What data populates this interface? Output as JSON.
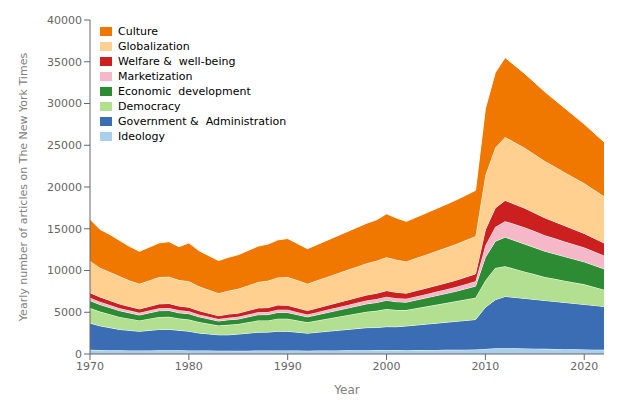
{
  "chart_data": {
    "type": "area",
    "stacked": true,
    "xlabel": "Year",
    "ylabel": "Yearly number of articles on The New York Times",
    "x": [
      1970,
      1971,
      1972,
      1973,
      1974,
      1975,
      1976,
      1977,
      1978,
      1979,
      1980,
      1981,
      1982,
      1983,
      1984,
      1985,
      1986,
      1987,
      1988,
      1989,
      1990,
      1991,
      1992,
      1993,
      1994,
      1995,
      1996,
      1997,
      1998,
      1999,
      2000,
      2001,
      2002,
      2003,
      2004,
      2005,
      2006,
      2007,
      2008,
      2009,
      2010,
      2011,
      2012,
      2013,
      2014,
      2015,
      2016,
      2017,
      2018,
      2019,
      2020,
      2021,
      2022
    ],
    "xlim": [
      1970,
      2022
    ],
    "xticks": [
      1970,
      1980,
      1990,
      2000,
      2010,
      2020
    ],
    "ylim": [
      0,
      40000
    ],
    "yticks": [
      0,
      5000,
      10000,
      15000,
      20000,
      25000,
      30000,
      35000,
      40000
    ],
    "grid": false,
    "legend": "upper left",
    "series": [
      {
        "name": "Ideology",
        "color": "#aacfea",
        "values": [
          500,
          480,
          460,
          440,
          430,
          420,
          430,
          440,
          460,
          440,
          430,
          420,
          410,
          400,
          400,
          390,
          400,
          410,
          420,
          430,
          420,
          410,
          400,
          410,
          420,
          430,
          440,
          450,
          460,
          470,
          480,
          470,
          460,
          470,
          480,
          490,
          500,
          510,
          520,
          530,
          600,
          700,
          700,
          680,
          660,
          640,
          620,
          600,
          580,
          560,
          540,
          520,
          500
        ]
      },
      {
        "name": "Government &  Administration",
        "color": "#3b6db5",
        "values": [
          3200,
          2900,
          2700,
          2500,
          2400,
          2300,
          2400,
          2500,
          2500,
          2400,
          2300,
          2100,
          2000,
          1900,
          1900,
          2000,
          2100,
          2200,
          2200,
          2300,
          2300,
          2200,
          2100,
          2200,
          2300,
          2400,
          2500,
          2600,
          2700,
          2700,
          2800,
          2800,
          2900,
          3000,
          3100,
          3200,
          3300,
          3400,
          3500,
          3600,
          5000,
          5800,
          6200,
          6100,
          6000,
          5900,
          5800,
          5700,
          5600,
          5500,
          5400,
          5300,
          5200
        ]
      },
      {
        "name": "Democracy",
        "color": "#b2e090",
        "values": [
          1800,
          1700,
          1600,
          1500,
          1400,
          1300,
          1400,
          1500,
          1500,
          1400,
          1400,
          1300,
          1200,
          1100,
          1200,
          1200,
          1300,
          1400,
          1400,
          1500,
          1500,
          1400,
          1300,
          1400,
          1500,
          1600,
          1700,
          1800,
          1900,
          2000,
          2100,
          2000,
          1900,
          2000,
          2100,
          2200,
          2300,
          2400,
          2500,
          2600,
          3200,
          3800,
          3600,
          3400,
          3200,
          3000,
          2800,
          2700,
          2600,
          2500,
          2400,
          2200,
          2000
        ]
      },
      {
        "name": "Economic  development",
        "color": "#2d8b34",
        "values": [
          900,
          850,
          800,
          750,
          700,
          650,
          700,
          750,
          750,
          700,
          700,
          650,
          600,
          550,
          600,
          600,
          650,
          700,
          700,
          750,
          750,
          700,
          650,
          700,
          750,
          800,
          850,
          900,
          950,
          1000,
          1050,
          1000,
          950,
          1000,
          1050,
          1100,
          1150,
          1200,
          1300,
          1400,
          2800,
          3200,
          3500,
          3400,
          3300,
          3200,
          3100,
          3000,
          2900,
          2800,
          2700,
          2600,
          2500
        ]
      },
      {
        "name": "Marketization",
        "color": "#f5b8c8",
        "values": [
          350,
          330,
          310,
          290,
          270,
          260,
          280,
          300,
          310,
          300,
          290,
          270,
          250,
          230,
          250,
          260,
          280,
          300,
          310,
          330,
          320,
          300,
          280,
          300,
          320,
          340,
          360,
          380,
          400,
          420,
          440,
          420,
          400,
          420,
          440,
          460,
          480,
          510,
          540,
          570,
          1400,
          1700,
          1900,
          1950,
          2000,
          1950,
          1900,
          1850,
          1800,
          1750,
          1700,
          1650,
          1600
        ]
      },
      {
        "name": "Welfare &  well-being",
        "color": "#cc2020",
        "values": [
          600,
          580,
          550,
          520,
          490,
          470,
          490,
          520,
          530,
          510,
          490,
          460,
          430,
          410,
          430,
          450,
          480,
          510,
          530,
          560,
          540,
          510,
          480,
          510,
          540,
          570,
          600,
          630,
          660,
          690,
          720,
          700,
          680,
          700,
          720,
          750,
          780,
          810,
          850,
          900,
          1900,
          2300,
          2500,
          2400,
          2300,
          2200,
          2100,
          2000,
          1900,
          1800,
          1700,
          1600,
          1500
        ]
      },
      {
        "name": "Globalization",
        "color": "#ffd090",
        "values": [
          3800,
          3500,
          3400,
          3300,
          3100,
          3000,
          3100,
          3200,
          3200,
          3100,
          3100,
          2900,
          2800,
          2700,
          2800,
          2900,
          3000,
          3100,
          3200,
          3300,
          3400,
          3300,
          3200,
          3300,
          3400,
          3500,
          3600,
          3700,
          3800,
          3900,
          4000,
          3900,
          3800,
          3900,
          4000,
          4100,
          4200,
          4300,
          4400,
          4500,
          6500,
          7200,
          7600,
          7400,
          7200,
          7000,
          6800,
          6600,
          6400,
          6200,
          6000,
          5800,
          5600
        ]
      },
      {
        "name": "Culture",
        "color": "#f07800",
        "values": [
          5000,
          4600,
          4500,
          4300,
          4100,
          3900,
          4000,
          4100,
          4200,
          4000,
          4600,
          4300,
          4100,
          3900,
          4000,
          4100,
          4200,
          4300,
          4400,
          4500,
          4600,
          4400,
          4200,
          4300,
          4400,
          4500,
          4600,
          4700,
          4800,
          4900,
          5200,
          5000,
          4800,
          4900,
          5000,
          5100,
          5200,
          5300,
          5400,
          5500,
          8000,
          9000,
          9500,
          9200,
          8900,
          8600,
          8300,
          8000,
          7700,
          7400,
          7100,
          6800,
          6500
        ]
      }
    ]
  }
}
